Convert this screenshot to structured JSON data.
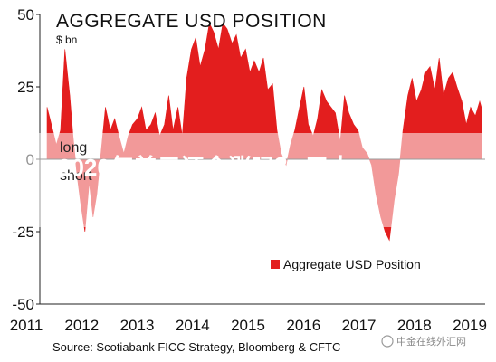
{
  "chart_data": {
    "type": "area",
    "title": "AGGREGATE USD POSITION",
    "ylabel": "$ bn",
    "xlabel": "",
    "ylim": [
      -50,
      50
    ],
    "xlim": [
      2011,
      2019.1
    ],
    "y_ticks": [
      "50",
      "25",
      "0",
      "-25",
      "-50"
    ],
    "x_ticks": [
      "2011",
      "2012",
      "2013",
      "2014",
      "2015",
      "2016",
      "2017",
      "2018",
      "2019"
    ],
    "grid": false,
    "legend_position": "bottom-right",
    "series": [
      {
        "name": "Aggregate USD Position",
        "color": "#e31e1e",
        "x": [
          2011.0,
          2011.08,
          2011.17,
          2011.25,
          2011.33,
          2011.42,
          2011.48,
          2011.55,
          2011.62,
          2011.7,
          2011.78,
          2011.85,
          2011.92,
          2012.0,
          2012.08,
          2012.17,
          2012.25,
          2012.33,
          2012.42,
          2012.5,
          2012.58,
          2012.67,
          2012.75,
          2012.83,
          2012.92,
          2013.0,
          2013.08,
          2013.17,
          2013.25,
          2013.33,
          2013.42,
          2013.5,
          2013.58,
          2013.67,
          2013.75,
          2013.83,
          2013.92,
          2014.0,
          2014.08,
          2014.17,
          2014.25,
          2014.33,
          2014.42,
          2014.5,
          2014.58,
          2014.67,
          2014.75,
          2014.83,
          2014.92,
          2015.0,
          2015.08,
          2015.17,
          2015.25,
          2015.33,
          2015.42,
          2015.5,
          2015.58,
          2015.67,
          2015.75,
          2015.83,
          2015.92,
          2016.0,
          2016.08,
          2016.17,
          2016.25,
          2016.33,
          2016.42,
          2016.5,
          2016.58,
          2016.67,
          2016.75,
          2016.83,
          2016.92,
          2017.0,
          2017.08,
          2017.17,
          2017.25,
          2017.33,
          2017.42,
          2017.5,
          2017.58,
          2017.67,
          2017.75,
          2017.83,
          2017.92,
          2018.0,
          2018.08,
          2018.17,
          2018.25,
          2018.33,
          2018.42,
          2018.5,
          2018.58,
          2018.67,
          2018.75,
          2018.83,
          2018.92,
          2019.0,
          2019.03
        ],
        "values": [
          18,
          12,
          5,
          10,
          38,
          22,
          8,
          -5,
          -15,
          -25,
          -8,
          -20,
          -12,
          3,
          18,
          10,
          14,
          8,
          2,
          8,
          12,
          14,
          18,
          10,
          12,
          16,
          8,
          12,
          22,
          10,
          18,
          8,
          28,
          38,
          42,
          32,
          38,
          47,
          44,
          38,
          47,
          45,
          40,
          43,
          35,
          38,
          30,
          34,
          30,
          35,
          24,
          26,
          10,
          2,
          -2,
          5,
          10,
          18,
          25,
          12,
          8,
          14,
          24,
          20,
          18,
          16,
          6,
          22,
          16,
          12,
          10,
          4,
          2,
          -2,
          -12,
          -20,
          -25,
          -28,
          -14,
          -5,
          10,
          22,
          28,
          20,
          24,
          30,
          32,
          24,
          35,
          22,
          28,
          30,
          25,
          20,
          12,
          18,
          15,
          20,
          18
        ]
      }
    ]
  },
  "overlay": {
    "band_text": "2020年美元还会涨吗？ 三大",
    "side_top": "long",
    "side_bottom": "short"
  },
  "footer": {
    "source": "Source: Scotiabank FICC Strategy, Bloomberg & CFTC",
    "watermark": "中金在线外汇网"
  }
}
